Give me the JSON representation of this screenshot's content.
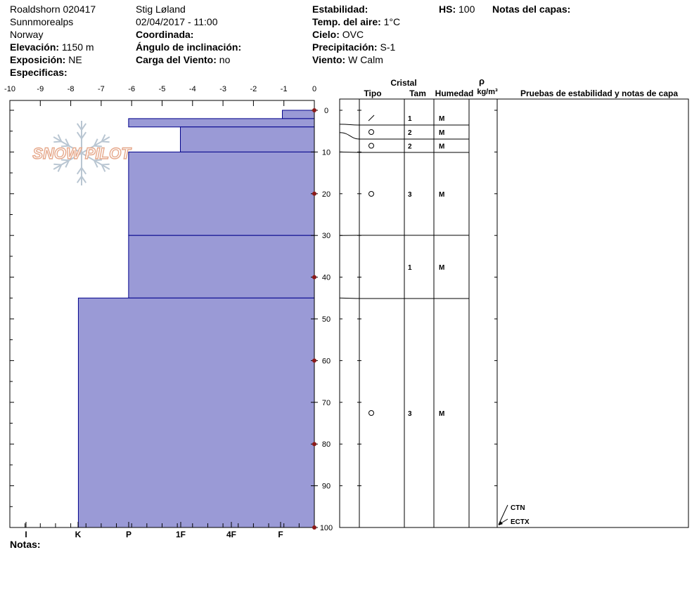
{
  "header": {
    "site": "Roaldshorn 020417",
    "range": "Sunnmorealps",
    "country": "Norway",
    "elevation_label": "Elevación:",
    "elevation_value": "1150 m",
    "aspect_label": "Exposición:",
    "aspect_value": "NE",
    "specifics_label": "Especificas:",
    "observer": "Stig Løland",
    "datetime": "02/04/2017 - 11:00",
    "coords_label": "Coordinada:",
    "slope_label": "Ángulo de inclinación:",
    "wind_load_label": "Carga del Viento:",
    "wind_load_value": "no",
    "stability_label": "Estabilidad:",
    "air_temp_label": "Temp. del aire:",
    "air_temp_value": "1°C",
    "sky_label": "Cielo:",
    "sky_value": "OVC",
    "precip_label": "Precipitación:",
    "precip_value": "S-1",
    "wind_label": "Viento:",
    "wind_value": "W Calm",
    "hs_label": "HS:",
    "hs_value": "100",
    "layer_notes_label": "Notas del capas:"
  },
  "footer": {
    "notes_label": "Notas:"
  },
  "logo_text": "SNOW PILOT",
  "table_headers": {
    "crystal": "Cristal",
    "type": "Tipo",
    "size": "Tam",
    "moisture": "Humedad",
    "rho": "ρ",
    "density_unit": "kg/m³",
    "tests": "Pruebas de estabilidad y notas de capa"
  },
  "colors": {
    "fill": "#9a9ad6",
    "boundary": "#00008b",
    "dot": "#8b1a1a"
  },
  "chart_data": {
    "type": "step",
    "x_ticks": [
      -10,
      -9,
      -8,
      -7,
      -6,
      -5,
      -4,
      -3,
      -2,
      -1,
      0
    ],
    "depth_ticks": [
      0,
      10,
      20,
      30,
      40,
      50,
      60,
      70,
      80,
      90,
      100
    ],
    "temperature_points_depth": [
      0,
      20,
      40,
      60,
      80,
      100
    ],
    "hardness_ticks": [
      "I",
      "K",
      "P",
      "1F",
      "4F",
      "F"
    ],
    "hardness_profile": [
      {
        "top": 0,
        "bottom": 2,
        "temp_extent": -1.05
      },
      {
        "top": 2,
        "bottom": 4,
        "temp_extent": -6.1
      },
      {
        "top": 4,
        "bottom": 10,
        "temp_extent": -4.4
      },
      {
        "top": 10,
        "bottom": 30,
        "temp_extent": -6.1
      },
      {
        "top": 30,
        "bottom": 45,
        "temp_extent": -6.1
      },
      {
        "top": 45,
        "bottom": 100,
        "temp_extent": -7.75
      }
    ],
    "layers": [
      {
        "top": 0,
        "bottom": 3.3,
        "grain": "slash",
        "size": "1",
        "moisture": "M"
      },
      {
        "top": 3.3,
        "bottom": 6.7,
        "grain": "circle",
        "size": "2",
        "moisture": "M"
      },
      {
        "top": 6.7,
        "bottom": 10,
        "grain": "circle",
        "size": "2",
        "moisture": "M"
      },
      {
        "top": 10,
        "bottom": 30,
        "grain": "circle",
        "size": "3",
        "moisture": "M"
      },
      {
        "top": 30,
        "bottom": 45,
        "grain": "",
        "size": "1",
        "moisture": "M"
      },
      {
        "top": 45,
        "bottom": 100,
        "grain": "circle",
        "size": "3",
        "moisture": "M"
      }
    ],
    "tests": [
      {
        "label": "CTN",
        "depth": 100
      },
      {
        "label": "ECTX",
        "depth": 100
      }
    ]
  }
}
